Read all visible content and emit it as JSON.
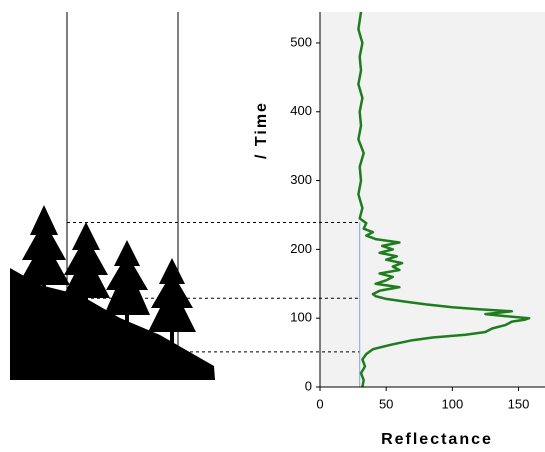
{
  "chart_data": {
    "type": "line",
    "ylabel": "/ Time",
    "xlabel": "Reflectance",
    "xlim": [
      0,
      170
    ],
    "ylim": [
      0,
      545
    ],
    "xticks": [
      0,
      50,
      100,
      150
    ],
    "yticks": [
      0,
      100,
      200,
      300,
      400,
      500
    ],
    "background": "#f2f2f2",
    "reference_x": 30,
    "reference_color": "#7fa6d6",
    "reference_times": [
      239,
      129,
      51
    ],
    "series": [
      {
        "color": "#1e7d1e",
        "x": [
          32,
          33,
          31,
          34,
          32,
          35,
          40,
          55,
          70,
          85,
          110,
          125,
          130,
          140,
          145,
          155,
          158,
          140,
          125,
          145,
          120,
          100,
          80,
          65,
          50,
          42,
          40,
          45,
          60,
          42,
          50,
          55,
          45,
          60,
          55,
          62,
          50,
          58,
          45,
          55,
          47,
          60,
          42,
          35,
          40,
          33,
          35,
          30,
          32,
          29,
          31,
          30,
          33,
          29,
          31,
          30,
          32,
          29,
          31,
          30,
          32,
          29,
          31
        ],
        "y": [
          0,
          10,
          20,
          30,
          40,
          48,
          55,
          62,
          68,
          72,
          76,
          80,
          85,
          90,
          95,
          98,
          100,
          103,
          106,
          110,
          113,
          116,
          120,
          124,
          128,
          132,
          135,
          140,
          145,
          150,
          155,
          160,
          165,
          170,
          175,
          180,
          185,
          190,
          195,
          200,
          205,
          210,
          215,
          220,
          225,
          230,
          238,
          245,
          260,
          280,
          300,
          320,
          340,
          360,
          380,
          400,
          420,
          440,
          460,
          480,
          500,
          520,
          545
        ]
      }
    ]
  }
}
